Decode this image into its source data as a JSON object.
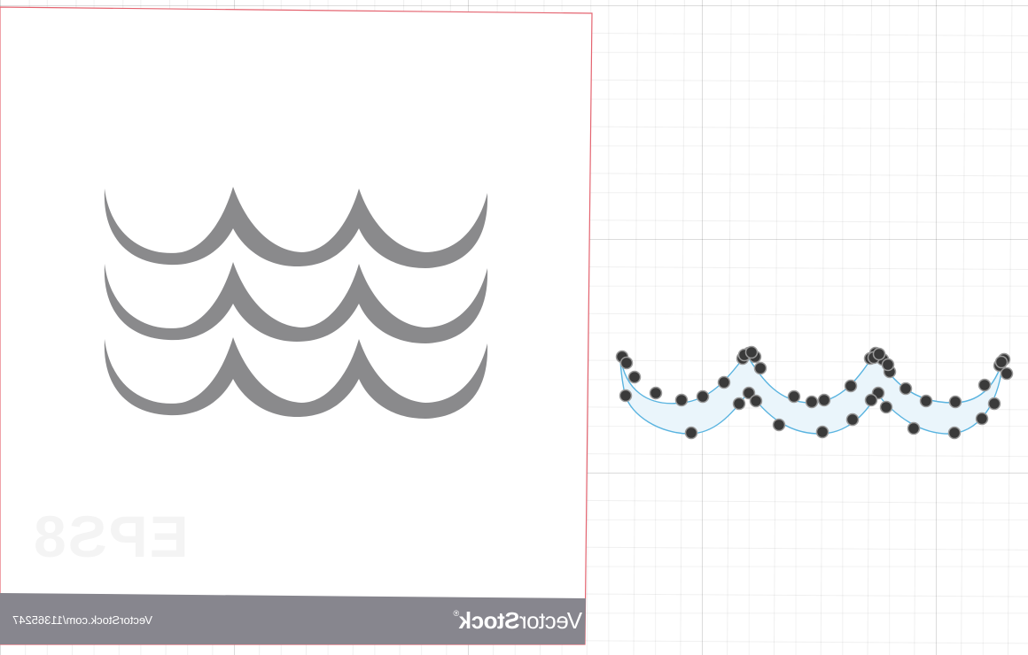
{
  "artboard": {
    "border_color": "#e46470",
    "wave_color": "#8a8a8c",
    "footer_color": "#87868e"
  },
  "watermark": {
    "brand_thin": "Vector",
    "brand_bold": "Stock",
    "brand_mark": "®",
    "reference": "VectorStock.com/11365247",
    "format": "EPS8"
  },
  "selection": {
    "outline_color": "#5ab4e0",
    "fill_color": "#eaf5fb",
    "anchor_color": "#3a3a3a",
    "anchor_count": 47
  }
}
